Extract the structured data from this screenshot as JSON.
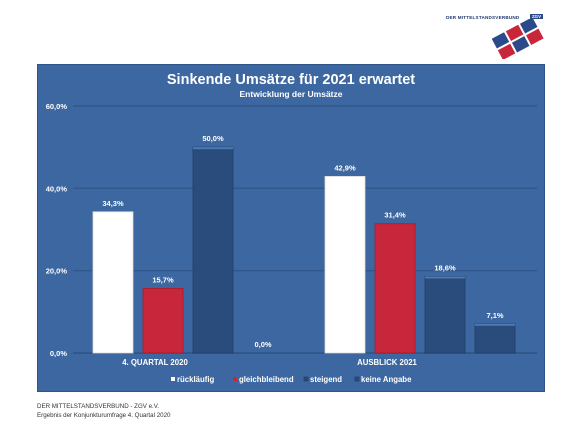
{
  "logo": {
    "name": "DER MITTELSTANDSVERBUND",
    "badge": "ZGV"
  },
  "chart_data": {
    "type": "bar",
    "title": "Sinkende Umsätze für 2021 erwartet",
    "subtitle": "Entwicklung der Umsätze",
    "categories": [
      "4. QUARTAL 2020",
      "AUSBLICK 2021"
    ],
    "series": [
      {
        "name": "rückläufig",
        "values": [
          34.3,
          42.9
        ],
        "labels": [
          "34,3%",
          "42,9%"
        ]
      },
      {
        "name": "gleichbleibend",
        "values": [
          15.7,
          31.4
        ],
        "labels": [
          "15,7%",
          "31,4%"
        ]
      },
      {
        "name": "steigend",
        "values": [
          50.0,
          18.6
        ],
        "labels": [
          "50,0%",
          "18,6%"
        ]
      },
      {
        "name": "keine Angabe",
        "values": [
          0.0,
          7.1
        ],
        "labels": [
          "0,0%",
          "7,1%"
        ]
      }
    ],
    "ylim": [
      0,
      60
    ],
    "yticks": [
      0,
      20,
      40,
      60
    ],
    "ytick_labels": [
      "0,0%",
      "20,0%",
      "40,0%",
      "60,0%"
    ],
    "grid": true,
    "legend_position": "bottom",
    "colors": {
      "background": "#3d67a0",
      "rückläufig": "#ffffff",
      "gleichbleibend": "#c8263a",
      "steigend": "#2a4c7c",
      "keine Angabe": "#2a4c7c"
    }
  },
  "footer": {
    "line1": "DER MITTELSTANDSVERBUND - ZGV e.V.",
    "line2": "Ergebnis der Konjunkturumfrage 4. Quartal 2020"
  }
}
